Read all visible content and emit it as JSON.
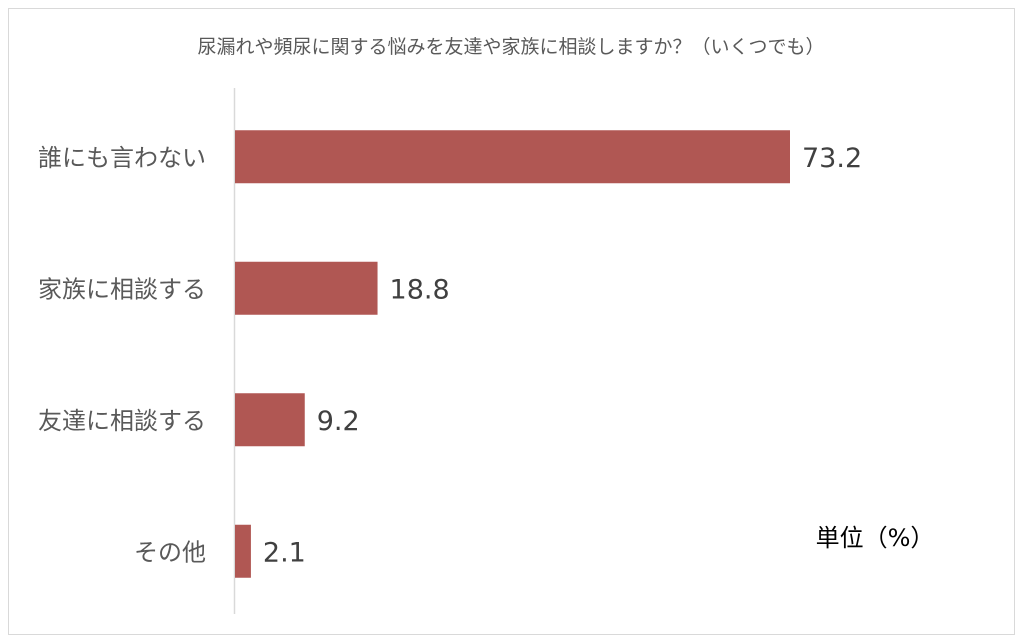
{
  "chart_data": {
    "type": "bar",
    "orientation": "horizontal",
    "title": "尿漏れや頻尿に関する悩みを友達や家族に相談しますか？（いくつでも）",
    "categories": [
      "誰にも言わない",
      "家族に相談する",
      "友達に相談する",
      "その他"
    ],
    "values": [
      73.2,
      18.8,
      9.2,
      2.1
    ],
    "value_labels": [
      "73.2",
      "18.8",
      "9.2",
      "2.1"
    ],
    "unit_label": "単位（%）",
    "xlim": [
      0,
      100
    ],
    "grid": false,
    "bar_color": "#b05753",
    "axis_color": "#d9d9d9"
  }
}
